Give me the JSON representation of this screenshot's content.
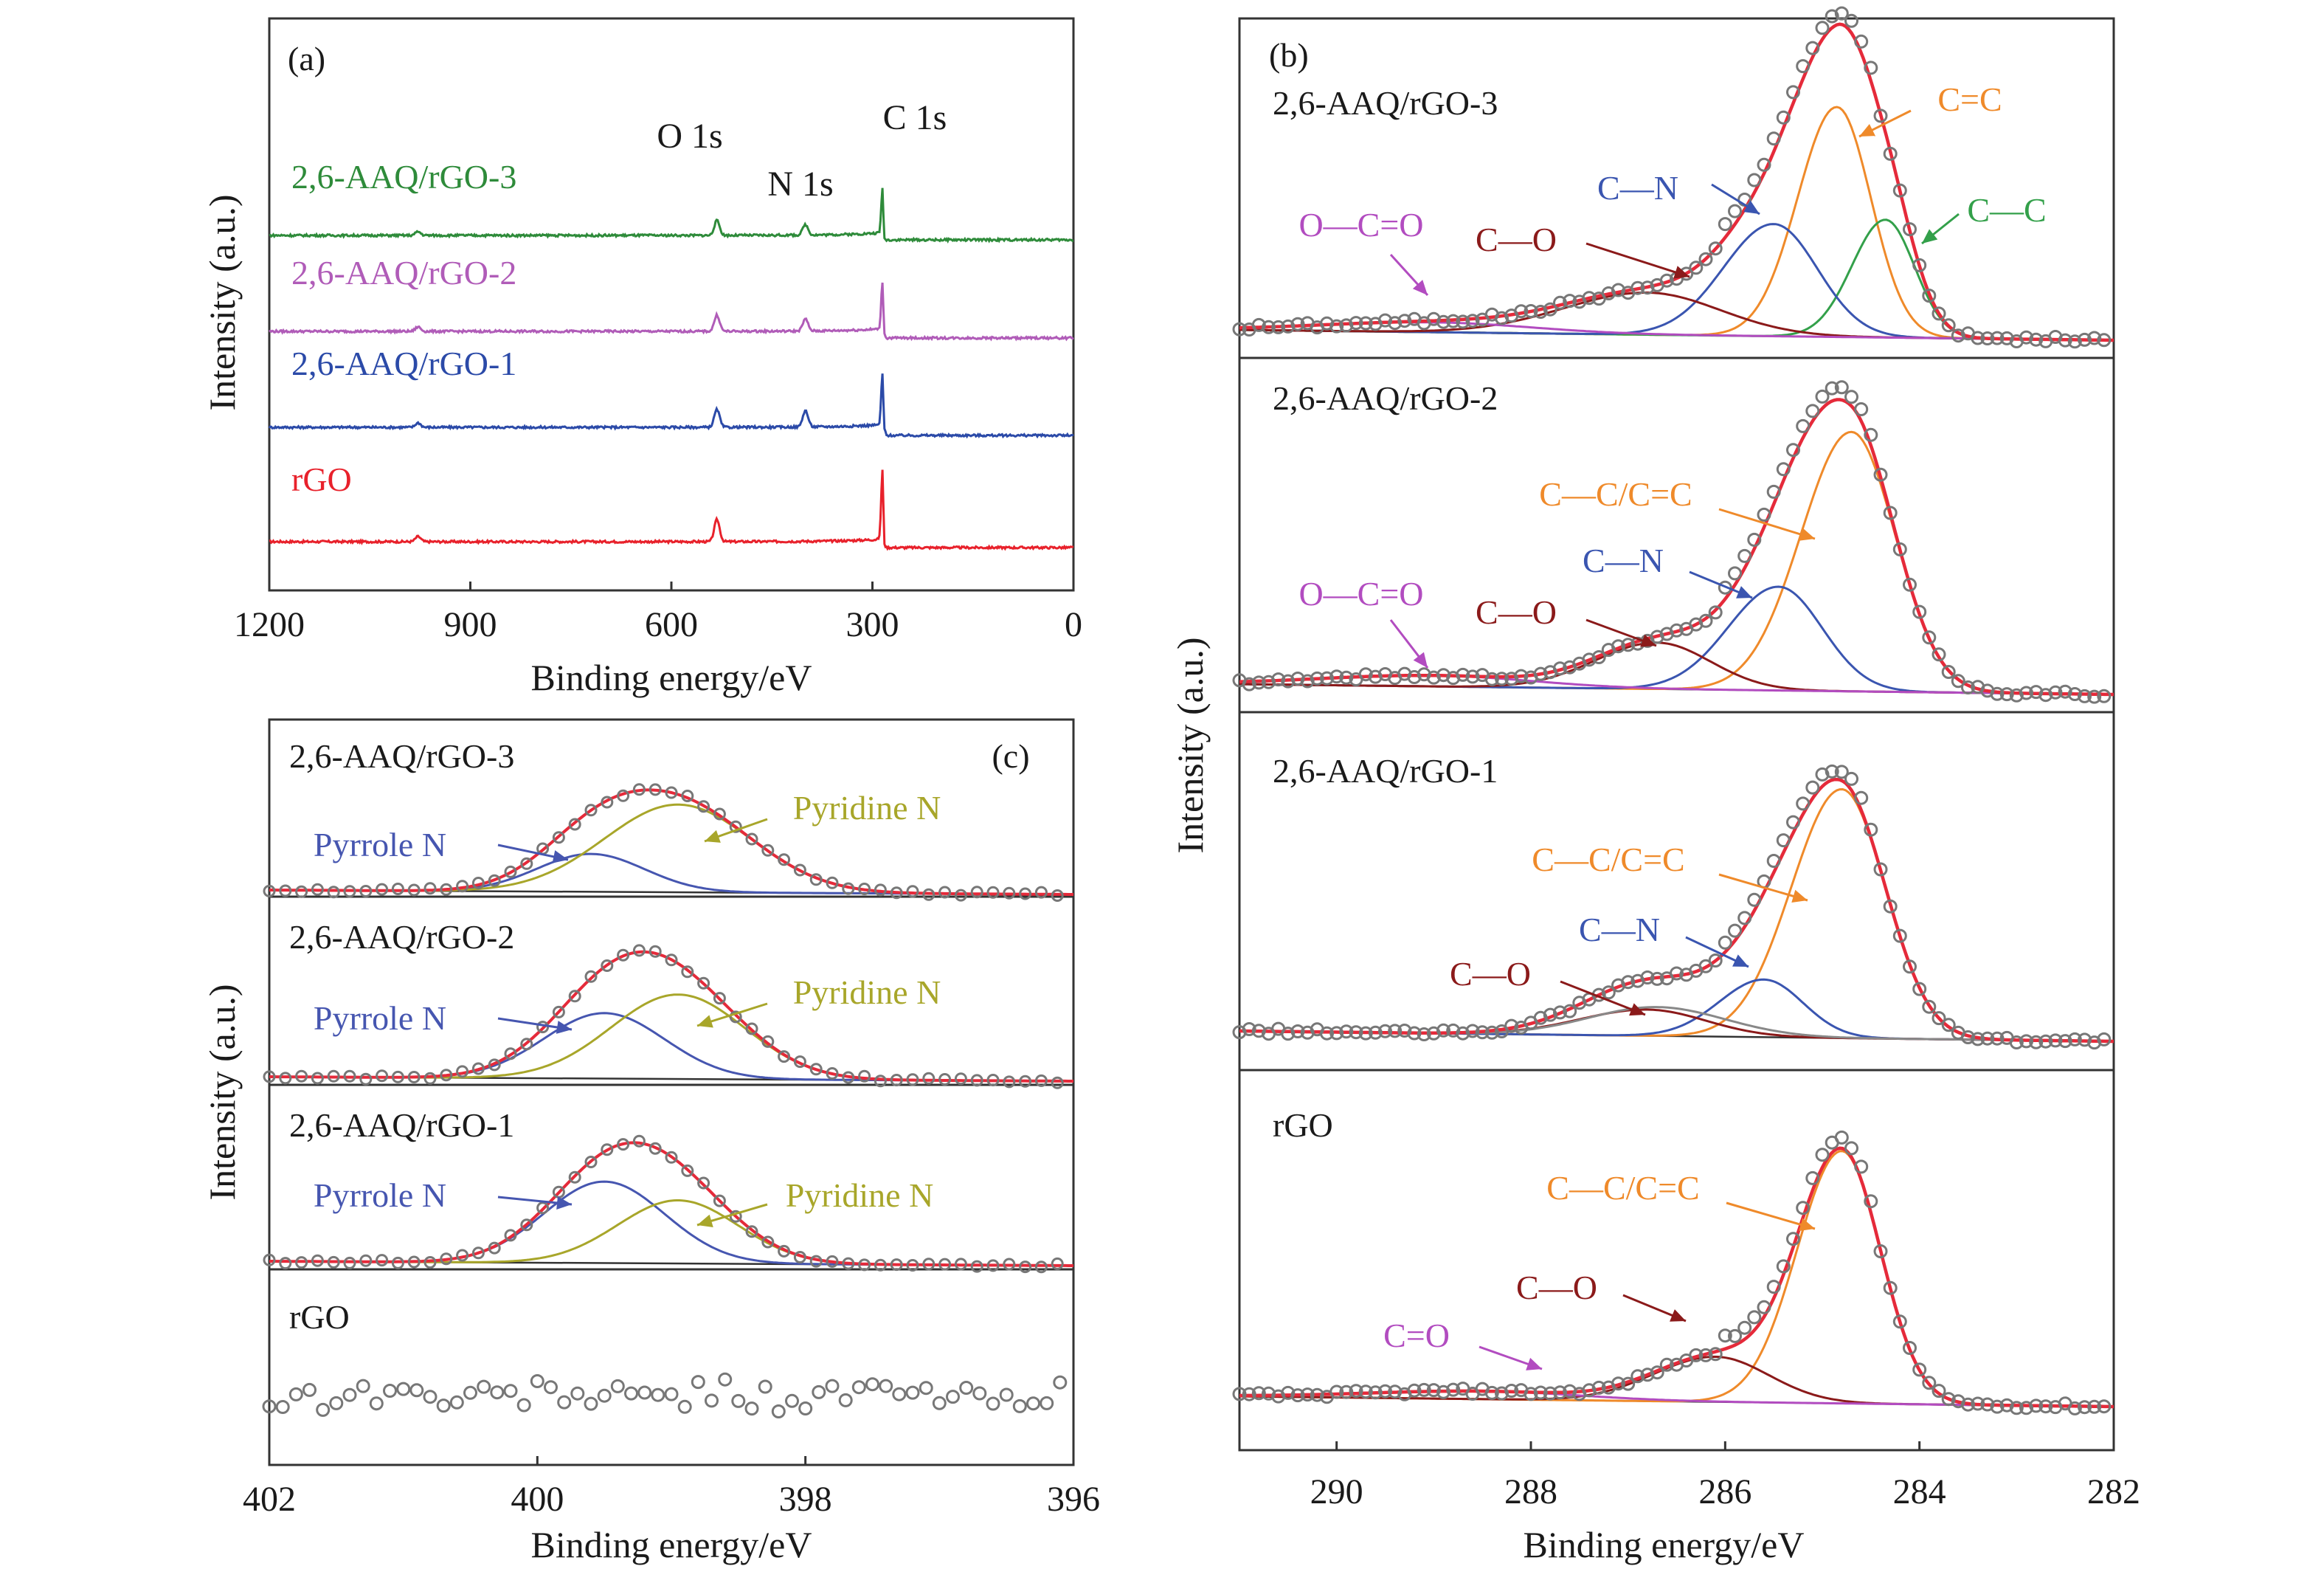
{
  "colors": {
    "rgo": "#e8212b",
    "s1": "#2b4aa8",
    "s2": "#b05cb8",
    "s3": "#2e8b3a",
    "fit": "#e52a3a",
    "c_n": "#3a55b0",
    "c_o": "#8b1a1a",
    "cc": "#ef8a2a",
    "c_c": "#33a04a",
    "occo": "#b24cc0",
    "pyrrole": "#4656b0",
    "pyridine": "#a8a62a",
    "base": "#555555",
    "marker": "#777777",
    "axis": "#333333"
  },
  "chart_data": [
    {
      "id": "a",
      "type": "line",
      "panel_label": "(a)",
      "xlabel": "Binding energy/eV",
      "ylabel": "Intensity (a.u.)",
      "xlim": [
        1200,
        0
      ],
      "xticks": [
        1200,
        900,
        600,
        300,
        0
      ],
      "peak_labels": [
        {
          "text": "O 1s",
          "x": 532
        },
        {
          "text": "N 1s",
          "x": 400
        },
        {
          "text": "C 1s",
          "x": 285
        }
      ],
      "series": [
        {
          "name": "rGO",
          "offset": 0,
          "peaks": [
            {
              "x": 284.8,
              "h": 10
            },
            {
              "x": 532,
              "h": 3.0
            },
            {
              "x": 978,
              "h": 0.7
            }
          ]
        },
        {
          "name": "2,6-AAQ/rGO-1",
          "offset": 1,
          "peaks": [
            {
              "x": 284.8,
              "h": 7.6
            },
            {
              "x": 532,
              "h": 2.4
            },
            {
              "x": 400,
              "h": 2.2
            },
            {
              "x": 978,
              "h": 0.6
            }
          ]
        },
        {
          "name": "2,6-AAQ/rGO-2",
          "offset": 2,
          "peaks": [
            {
              "x": 284.8,
              "h": 7.0
            },
            {
              "x": 532,
              "h": 2.2
            },
            {
              "x": 400,
              "h": 1.6
            },
            {
              "x": 978,
              "h": 0.6
            }
          ]
        },
        {
          "name": "2,6-AAQ/rGO-3",
          "offset": 3,
          "peaks": [
            {
              "x": 284.8,
              "h": 6.6
            },
            {
              "x": 532,
              "h": 2.0
            },
            {
              "x": 400,
              "h": 1.4
            },
            {
              "x": 978,
              "h": 0.5
            }
          ]
        }
      ]
    },
    {
      "id": "b",
      "type": "line",
      "panel_label": "(b)",
      "xlabel": "Binding energy/eV",
      "ylabel": "Intensity (a.u.)",
      "xlim": [
        291,
        282
      ],
      "xticks": [
        290,
        288,
        286,
        284,
        282
      ],
      "subpanels": [
        {
          "name": "2,6-AAQ/rGO-3",
          "components": [
            {
              "label": "C=C",
              "center": 284.85,
              "height": 0.82,
              "width": 0.35,
              "color_key": "cc"
            },
            {
              "label": "C—C",
              "center": 284.35,
              "height": 0.42,
              "width": 0.3,
              "color_key": "c_c"
            },
            {
              "label": "C—N",
              "center": 285.5,
              "height": 0.4,
              "width": 0.45,
              "color_key": "c_n"
            },
            {
              "label": "C—O",
              "center": 286.8,
              "height": 0.15,
              "width": 0.75,
              "color_key": "c_o"
            },
            {
              "label": "O—C=O",
              "center": 289.0,
              "height": 0.035,
              "width": 1.0,
              "color_key": "occo"
            }
          ]
        },
        {
          "name": "2,6-AAQ/rGO-2",
          "components": [
            {
              "label": "C—C/C=C",
              "center": 284.7,
              "height": 0.95,
              "width": 0.45,
              "color_key": "cc"
            },
            {
              "label": "C—N",
              "center": 285.45,
              "height": 0.38,
              "width": 0.45,
              "color_key": "c_n"
            },
            {
              "label": "C—O",
              "center": 286.7,
              "height": 0.17,
              "width": 0.55,
              "color_key": "c_o"
            },
            {
              "label": "O—C=O",
              "center": 289.0,
              "height": 0.04,
              "width": 1.0,
              "color_key": "occo"
            }
          ]
        },
        {
          "name": "2,6-AAQ/rGO-1",
          "components": [
            {
              "label": "C—C/C=C",
              "center": 284.8,
              "height": 0.95,
              "width": 0.45,
              "color_key": "cc"
            },
            {
              "label": "C—N",
              "center": 285.6,
              "height": 0.22,
              "width": 0.4,
              "color_key": "c_n"
            },
            {
              "label": "C—O",
              "center": 286.8,
              "height": 0.1,
              "width": 0.6,
              "color_key": "c_o"
            }
          ]
        },
        {
          "name": "rGO",
          "components": [
            {
              "label": "C—C/C=C",
              "center": 284.8,
              "height": 0.95,
              "width": 0.4,
              "color_key": "cc"
            },
            {
              "label": "C—O",
              "center": 286.1,
              "height": 0.17,
              "width": 0.55,
              "color_key": "c_o"
            },
            {
              "label": "C=O",
              "center": 288.5,
              "height": 0.03,
              "width": 1.0,
              "color_key": "occo"
            }
          ]
        }
      ]
    },
    {
      "id": "c",
      "type": "line",
      "panel_label": "(c)",
      "xlabel": "Binding energy/eV",
      "ylabel": "Intensity (a.u.)",
      "xlim": [
        402,
        396
      ],
      "xticks": [
        402,
        400,
        398,
        396
      ],
      "subpanels": [
        {
          "name": "2,6-AAQ/rGO-3",
          "components": [
            {
              "label": "Pyrrole N",
              "center": 399.6,
              "height": 0.38,
              "width": 0.4,
              "color_key": "pyrrole"
            },
            {
              "label": "Pyridine N",
              "center": 398.95,
              "height": 0.88,
              "width": 0.55,
              "color_key": "pyridine"
            }
          ]
        },
        {
          "name": "2,6-AAQ/rGO-2",
          "components": [
            {
              "label": "Pyrrole N",
              "center": 399.5,
              "height": 0.62,
              "width": 0.45,
              "color_key": "pyrrole"
            },
            {
              "label": "Pyridine N",
              "center": 398.95,
              "height": 0.8,
              "width": 0.5,
              "color_key": "pyridine"
            }
          ]
        },
        {
          "name": "2,6-AAQ/rGO-1",
          "components": [
            {
              "label": "Pyrrole N",
              "center": 399.5,
              "height": 0.8,
              "width": 0.45,
              "color_key": "pyrrole"
            },
            {
              "label": "Pyridine N",
              "center": 398.95,
              "height": 0.62,
              "width": 0.45,
              "color_key": "pyridine"
            }
          ]
        },
        {
          "name": "rGO",
          "components": []
        }
      ]
    }
  ]
}
